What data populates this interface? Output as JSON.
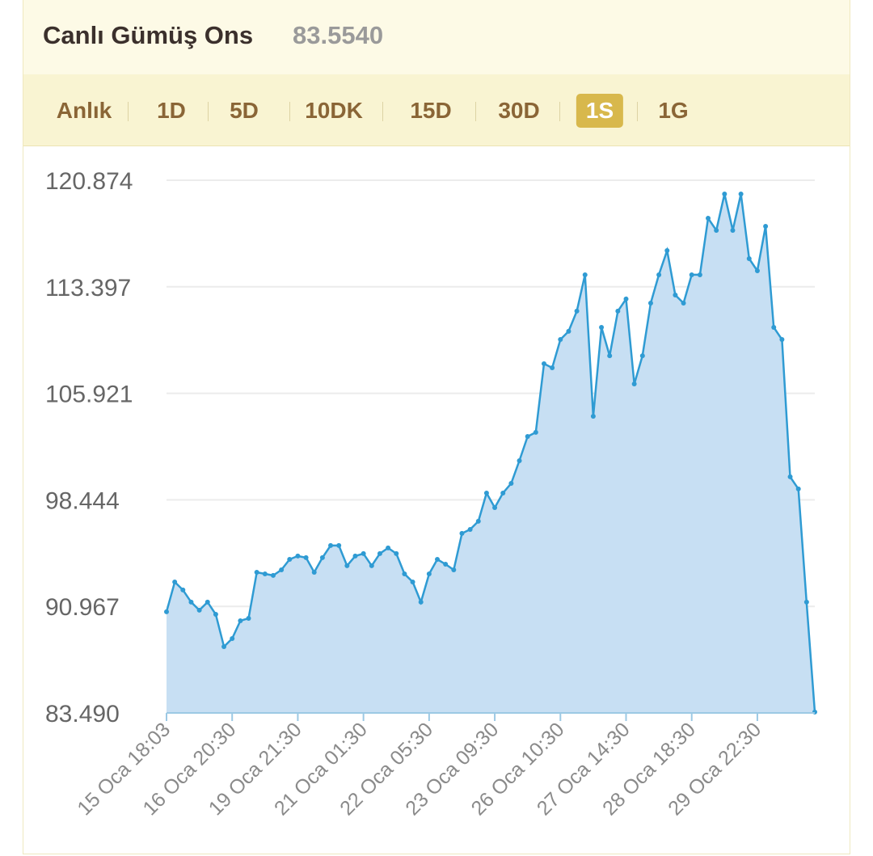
{
  "header": {
    "title": "Canlı Gümüş Ons",
    "price": "83.5540"
  },
  "tabs": [
    "Anlık",
    "1D",
    "5D",
    "10DK",
    "15D",
    "30D",
    "1S",
    "1G"
  ],
  "active_tab": "1S",
  "chart_data": {
    "type": "area",
    "color": "#2f9bd3",
    "fill": "#c7dff3",
    "grid": true,
    "categories": [
      "15 Oca 18:03",
      null,
      null,
      null,
      null,
      null,
      null,
      null,
      "16 Oca 20:30",
      null,
      null,
      null,
      null,
      null,
      null,
      null,
      "19 Oca 21:30",
      null,
      null,
      null,
      null,
      null,
      null,
      null,
      "21 Oca 01:30",
      null,
      null,
      null,
      null,
      null,
      null,
      null,
      "22 Oca 05:30",
      null,
      null,
      null,
      null,
      null,
      null,
      null,
      "23 Oca 09:30",
      null,
      null,
      null,
      null,
      null,
      null,
      null,
      "26 Oca 10:30",
      null,
      null,
      null,
      null,
      null,
      null,
      null,
      "27 Oca 14:30",
      null,
      null,
      null,
      null,
      null,
      null,
      null,
      "28 Oca 18:30",
      null,
      null,
      null,
      null,
      null,
      null,
      null,
      "29 Oca 22:30",
      null,
      null,
      null,
      null,
      null,
      null,
      null
    ],
    "values": [
      90.59,
      92.68,
      92.12,
      91.27,
      90.7,
      91.27,
      90.41,
      88.14,
      88.71,
      89.96,
      90.13,
      93.36,
      93.25,
      93.14,
      93.53,
      94.27,
      94.5,
      94.39,
      93.36,
      94.39,
      95.24,
      95.24,
      93.82,
      94.5,
      94.67,
      93.82,
      94.67,
      95.07,
      94.67,
      93.25,
      92.68,
      91.27,
      93.25,
      94.27,
      93.93,
      93.53,
      96.09,
      96.37,
      96.94,
      98.92,
      97.9,
      98.92,
      99.6,
      101.19,
      102.89,
      103.18,
      108.0,
      107.71,
      109.7,
      110.27,
      111.69,
      114.24,
      104.31,
      110.55,
      108.56,
      111.69,
      112.54,
      106.58,
      108.56,
      112.25,
      114.24,
      115.94,
      112.82,
      112.25,
      114.24,
      114.24,
      118.21,
      117.36,
      119.91,
      117.36,
      119.91,
      115.37,
      114.52,
      117.64,
      110.55,
      109.7,
      100.06,
      99.21,
      91.27,
      83.554
    ],
    "ylim": [
      83.49,
      120.874
    ],
    "yticks": [
      {
        "value": 83.49,
        "label": "83.490"
      },
      90.967,
      98.444,
      105.921,
      113.397,
      120.874
    ]
  }
}
